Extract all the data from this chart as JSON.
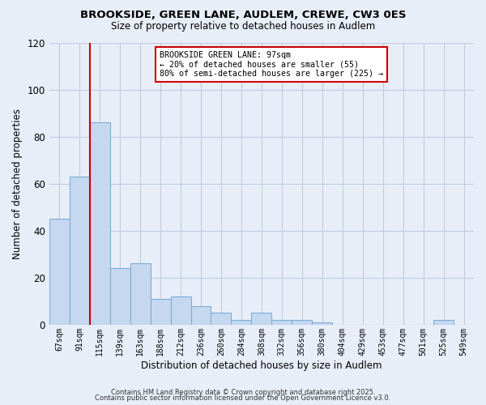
{
  "title_line1": "BROOKSIDE, GREEN LANE, AUDLEM, CREWE, CW3 0ES",
  "title_line2": "Size of property relative to detached houses in Audlem",
  "xlabel": "Distribution of detached houses by size in Audlem",
  "ylabel": "Number of detached properties",
  "bar_labels": [
    "67sqm",
    "91sqm",
    "115sqm",
    "139sqm",
    "163sqm",
    "188sqm",
    "212sqm",
    "236sqm",
    "260sqm",
    "284sqm",
    "308sqm",
    "332sqm",
    "356sqm",
    "380sqm",
    "404sqm",
    "429sqm",
    "453sqm",
    "477sqm",
    "501sqm",
    "525sqm",
    "549sqm"
  ],
  "bar_values": [
    45,
    63,
    86,
    24,
    26,
    11,
    12,
    8,
    5,
    2,
    5,
    2,
    2,
    1,
    0,
    0,
    0,
    0,
    0,
    2,
    0
  ],
  "bar_color": "#c5d8f0",
  "bar_edge_color": "#7aafd4",
  "vline_color": "#cc0000",
  "vline_x_index": 1.5,
  "ylim": [
    0,
    120
  ],
  "yticks": [
    0,
    20,
    40,
    60,
    80,
    100,
    120
  ],
  "annotation_title": "BROOKSIDE GREEN LANE: 97sqm",
  "annotation_line2": "← 20% of detached houses are smaller (55)",
  "annotation_line3": "80% of semi-detached houses are larger (225) →",
  "annotation_box_color": "#cc0000",
  "footer_line1": "Contains HM Land Registry data © Crown copyright and database right 2025.",
  "footer_line2": "Contains public sector information licensed under the Open Government Licence v3.0.",
  "background_color": "#e8eef8",
  "grid_color": "#c0cce0"
}
